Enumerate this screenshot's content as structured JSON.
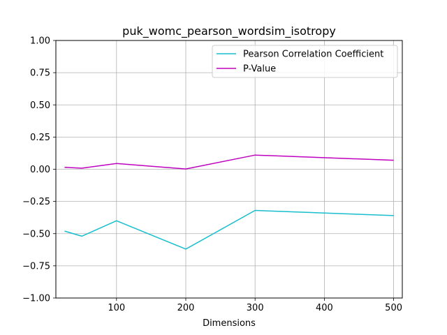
{
  "chart_data": {
    "type": "line",
    "title": "puk_womc_pearson_wordsim_isotropy",
    "xlabel": "Dimensions",
    "ylabel": "",
    "xlim": [
      12.5,
      512.5
    ],
    "ylim": [
      -1.0,
      1.0
    ],
    "xticks": [
      100,
      200,
      300,
      400,
      500
    ],
    "xtick_labels": [
      "100",
      "200",
      "300",
      "400",
      "500"
    ],
    "yticks": [
      -1.0,
      -0.75,
      -0.5,
      -0.25,
      0.0,
      0.25,
      0.5,
      0.75,
      1.0
    ],
    "ytick_labels": [
      "−1.00",
      "−0.75",
      "−0.50",
      "−0.25",
      "0.00",
      "0.25",
      "0.50",
      "0.75",
      "1.00"
    ],
    "grid": true,
    "legend_position": "top-right",
    "x": [
      25,
      50,
      100,
      200,
      300,
      500
    ],
    "series": [
      {
        "name": "Pearson Correlation Coefficient",
        "color": "#17becf",
        "values": [
          -0.48,
          -0.52,
          -0.4,
          -0.62,
          -0.32,
          -0.36
        ]
      },
      {
        "name": "P-Value",
        "color": "#bf00bf",
        "values": [
          0.015,
          0.008,
          0.045,
          0.002,
          0.11,
          0.07
        ]
      }
    ]
  }
}
